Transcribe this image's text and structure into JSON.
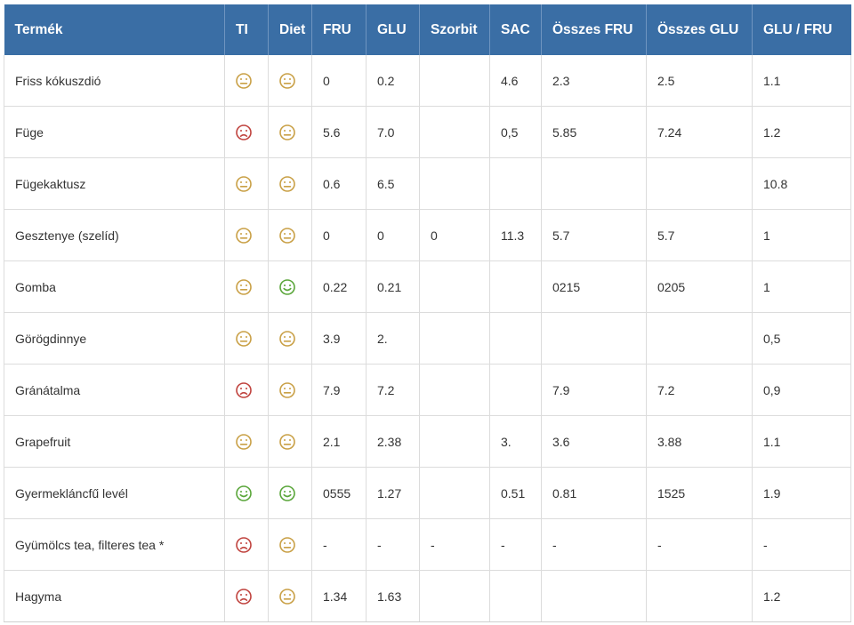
{
  "headers": [
    "Termék",
    "TI",
    "Diet",
    "FRU",
    "GLU",
    "Szorbit",
    "SAC",
    "Összes FRU",
    "Összes GLU",
    "GLU / FRU"
  ],
  "face_colors": {
    "neutral": "#c9a046",
    "bad": "#c0433e",
    "good": "#5aa63a"
  },
  "rows": [
    {
      "name": "Friss kókuszdió",
      "ti": "neutral",
      "diet": "neutral",
      "vals": [
        "0",
        "0.2",
        "",
        "4.6",
        "2.3",
        "2.5",
        "1.1"
      ]
    },
    {
      "name": "Füge",
      "ti": "bad",
      "diet": "neutral",
      "vals": [
        "5.6",
        "7.0",
        "",
        "0,5",
        "5.85",
        "7.24",
        "1.2"
      ]
    },
    {
      "name": "Fügekaktusz",
      "ti": "neutral",
      "diet": "neutral",
      "vals": [
        "0.6",
        "6.5",
        "",
        "",
        "",
        "",
        "10.8"
      ]
    },
    {
      "name": "Gesztenye (szelíd)",
      "ti": "neutral",
      "diet": "neutral",
      "vals": [
        "0",
        "0",
        "0",
        "11.3",
        "5.7",
        "5.7",
        "1"
      ]
    },
    {
      "name": "Gomba",
      "ti": "neutral",
      "diet": "good",
      "vals": [
        "0.22",
        "0.21",
        "",
        "",
        "0215",
        "0205",
        "1"
      ]
    },
    {
      "name": "Görögdinnye",
      "ti": "neutral",
      "diet": "neutral",
      "vals": [
        "3.9",
        "2.",
        "",
        "",
        "",
        "",
        "0,5"
      ]
    },
    {
      "name": "Gránátalma",
      "ti": "bad",
      "diet": "neutral",
      "vals": [
        "7.9",
        "7.2",
        "",
        "",
        "7.9",
        "7.2",
        "0,9"
      ]
    },
    {
      "name": "Grapefruit",
      "ti": "neutral",
      "diet": "neutral",
      "vals": [
        "2.1",
        "2.38",
        "",
        "3.",
        "3.6",
        "3.88",
        "1.1"
      ]
    },
    {
      "name": "Gyermekláncfű levél",
      "ti": "good",
      "diet": "good",
      "vals": [
        "0555",
        "1.27",
        "",
        "0.51",
        "0.81",
        "1525",
        "1.9"
      ]
    },
    {
      "name": "Gyümölcs tea, filteres tea *",
      "ti": "bad",
      "diet": "neutral",
      "vals": [
        "-",
        "-",
        "-",
        "-",
        "-",
        "-",
        "-"
      ]
    },
    {
      "name": "Hagyma",
      "ti": "bad",
      "diet": "neutral",
      "vals": [
        "1.34",
        "1.63",
        "",
        "",
        "",
        "",
        "1.2"
      ]
    }
  ]
}
